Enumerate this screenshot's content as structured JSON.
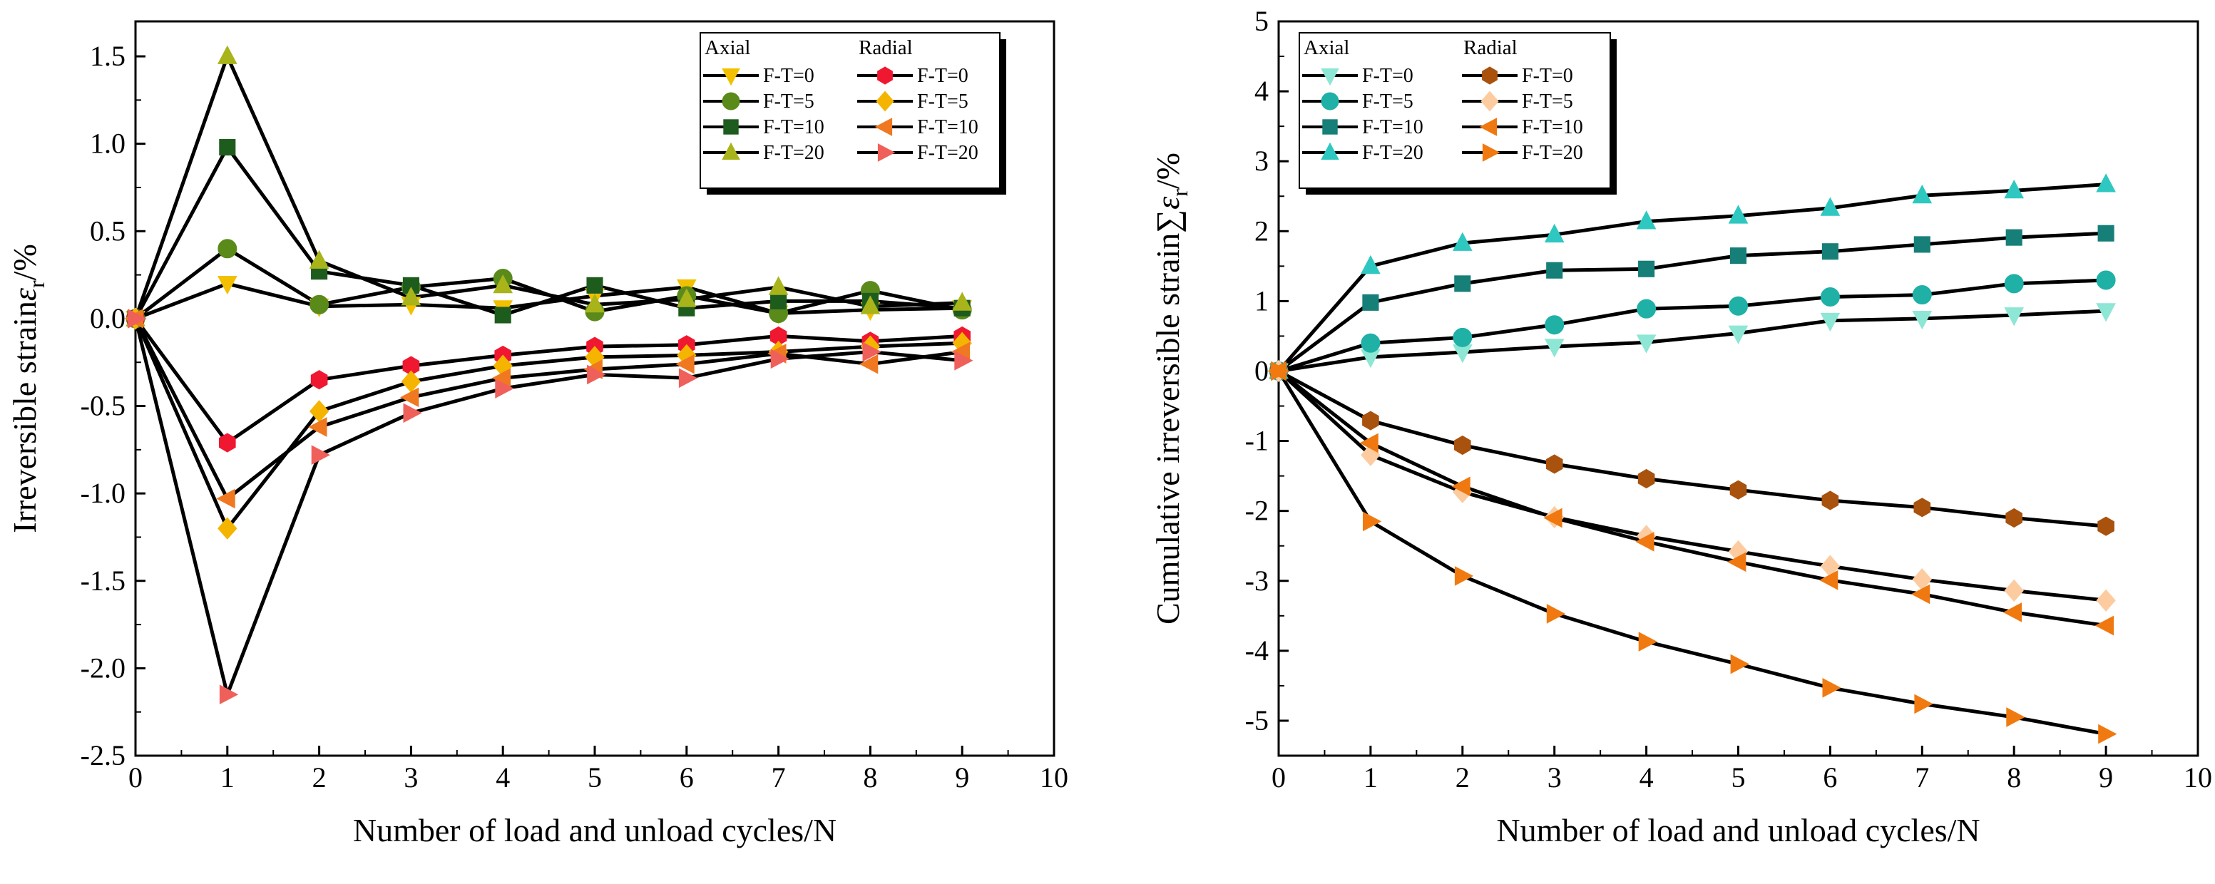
{
  "chart_data": [
    {
      "type": "line",
      "xlabel": "Number of load and unload cycles/N",
      "ylabel": "Irreversible strain",
      "ylabel_symbol": "ε",
      "ylabel_subscript": "r",
      "ylabel_unit": "/%",
      "xlim": [
        0,
        10
      ],
      "ylim": [
        -2.5,
        1.7
      ],
      "x_ticks": [
        0,
        1,
        2,
        3,
        4,
        5,
        6,
        7,
        8,
        9,
        10
      ],
      "x_tick_labels": [
        "0",
        "1",
        "2",
        "3",
        "4",
        "5",
        "6",
        "7",
        "8",
        "9",
        "10"
      ],
      "y_ticks": [
        -2.5,
        -2.0,
        -1.5,
        -1.0,
        -0.5,
        0.0,
        0.5,
        1.0,
        1.5
      ],
      "y_tick_labels": [
        "-2.5",
        "-2.0",
        "-1.5",
        "-1.0",
        "-0.5",
        "0.0",
        "0.5",
        "1.0",
        "1.5"
      ],
      "grid": false,
      "legend_position": "top-right",
      "legend_groups": [
        "Axial",
        "Radial"
      ],
      "x": [
        0,
        1,
        2,
        3,
        4,
        5,
        6,
        7,
        8,
        9
      ],
      "series": [
        {
          "name": "F-T=0",
          "group": "Axial",
          "marker": "triangle-down",
          "color": "#F2C000",
          "values": [
            0,
            0.2,
            0.07,
            0.08,
            0.06,
            0.13,
            0.18,
            0.03,
            0.05,
            0.06
          ]
        },
        {
          "name": "F-T=5",
          "group": "Axial",
          "marker": "circle",
          "color": "#5A8A1A",
          "values": [
            0,
            0.4,
            0.08,
            0.18,
            0.23,
            0.04,
            0.13,
            0.03,
            0.16,
            0.05
          ]
        },
        {
          "name": "F-T=10",
          "group": "Axial",
          "marker": "square",
          "color": "#1E5C1E",
          "values": [
            0,
            0.98,
            0.27,
            0.19,
            0.02,
            0.19,
            0.06,
            0.1,
            0.1,
            0.06
          ]
        },
        {
          "name": "F-T=20",
          "group": "Axial",
          "marker": "triangle-up",
          "color": "#A8B41A",
          "values": [
            0,
            1.5,
            0.33,
            0.12,
            0.19,
            0.08,
            0.11,
            0.18,
            0.07,
            0.09
          ]
        },
        {
          "name": "F-T=0",
          "group": "Radial",
          "marker": "hexagon",
          "color": "#F01830",
          "values": [
            0,
            -0.71,
            -0.35,
            -0.27,
            -0.21,
            -0.16,
            -0.15,
            -0.1,
            -0.13,
            -0.1
          ]
        },
        {
          "name": "F-T=5",
          "group": "Radial",
          "marker": "diamond",
          "color": "#F5B400",
          "values": [
            0,
            -1.2,
            -0.53,
            -0.36,
            -0.27,
            -0.22,
            -0.21,
            -0.19,
            -0.16,
            -0.14
          ]
        },
        {
          "name": "F-T=10",
          "group": "Radial",
          "marker": "triangle-left",
          "color": "#F07820",
          "values": [
            0,
            -1.03,
            -0.62,
            -0.45,
            -0.34,
            -0.29,
            -0.26,
            -0.2,
            -0.26,
            -0.19
          ]
        },
        {
          "name": "F-T=20",
          "group": "Radial",
          "marker": "triangle-right",
          "color": "#F0605A",
          "values": [
            0,
            -2.15,
            -0.78,
            -0.54,
            -0.4,
            -0.32,
            -0.34,
            -0.23,
            -0.19,
            -0.24
          ]
        }
      ]
    },
    {
      "type": "line",
      "xlabel": "Number of load and unload cycles/N",
      "ylabel": "Cumulative irreversible strain",
      "ylabel_symbol": "∑ε",
      "ylabel_subscript": "r",
      "ylabel_unit": "/%",
      "xlim": [
        0,
        10
      ],
      "ylim": [
        -5.5,
        5
      ],
      "x_ticks": [
        0,
        1,
        2,
        3,
        4,
        5,
        6,
        7,
        8,
        9,
        10
      ],
      "x_tick_labels": [
        "0",
        "1",
        "2",
        "3",
        "4",
        "5",
        "6",
        "7",
        "8",
        "9",
        "10"
      ],
      "y_ticks": [
        -5,
        -4,
        -3,
        -2,
        -1,
        0,
        1,
        2,
        3,
        4,
        5
      ],
      "y_tick_labels": [
        "-5",
        "-4",
        "-3",
        "-2",
        "-1",
        "0",
        "1",
        "2",
        "3",
        "4",
        "5"
      ],
      "grid": false,
      "legend_position": "top-left",
      "legend_groups": [
        "Axial",
        "Radial"
      ],
      "x": [
        0,
        1,
        2,
        3,
        4,
        5,
        6,
        7,
        8,
        9
      ],
      "series": [
        {
          "name": "F-T=0",
          "group": "Axial",
          "marker": "triangle-down",
          "color": "#8EE6D4",
          "values": [
            0,
            0.2,
            0.27,
            0.35,
            0.41,
            0.54,
            0.72,
            0.75,
            0.8,
            0.86
          ]
        },
        {
          "name": "F-T=5",
          "group": "Axial",
          "marker": "circle",
          "color": "#1FB0A6",
          "values": [
            0,
            0.4,
            0.48,
            0.66,
            0.89,
            0.93,
            1.06,
            1.09,
            1.25,
            1.3
          ]
        },
        {
          "name": "F-T=10",
          "group": "Axial",
          "marker": "square",
          "color": "#167F78",
          "values": [
            0,
            0.98,
            1.25,
            1.44,
            1.46,
            1.65,
            1.71,
            1.81,
            1.91,
            1.97
          ]
        },
        {
          "name": "F-T=20",
          "group": "Axial",
          "marker": "triangle-up",
          "color": "#2EC8C0",
          "values": [
            0,
            1.5,
            1.83,
            1.95,
            2.14,
            2.22,
            2.33,
            2.51,
            2.58,
            2.67
          ]
        },
        {
          "name": "F-T=0",
          "group": "Radial",
          "marker": "hexagon",
          "color": "#A8520E",
          "values": [
            0,
            -0.71,
            -1.06,
            -1.33,
            -1.54,
            -1.7,
            -1.85,
            -1.95,
            -2.1,
            -2.22
          ]
        },
        {
          "name": "F-T=5",
          "group": "Radial",
          "marker": "diamond",
          "color": "#FCCCA0",
          "values": [
            0,
            -1.2,
            -1.73,
            -2.09,
            -2.36,
            -2.58,
            -2.79,
            -2.98,
            -3.14,
            -3.28
          ]
        },
        {
          "name": "F-T=10",
          "group": "Radial",
          "marker": "triangle-left",
          "color": "#F07810",
          "values": [
            0,
            -1.03,
            -1.65,
            -2.1,
            -2.44,
            -2.73,
            -2.99,
            -3.19,
            -3.45,
            -3.64
          ]
        },
        {
          "name": "F-T=20",
          "group": "Radial",
          "marker": "triangle-right",
          "color": "#F07A10",
          "values": [
            0,
            -2.15,
            -2.93,
            -3.47,
            -3.87,
            -4.19,
            -4.53,
            -4.76,
            -4.95,
            -5.19
          ]
        }
      ]
    }
  ]
}
